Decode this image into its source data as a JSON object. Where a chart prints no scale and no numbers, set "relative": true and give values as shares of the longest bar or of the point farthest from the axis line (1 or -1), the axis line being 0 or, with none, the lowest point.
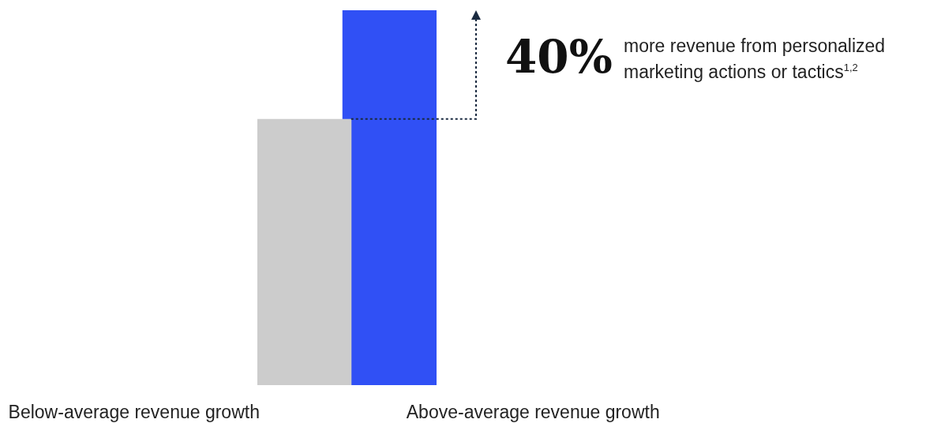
{
  "chart_data": {
    "type": "bar",
    "relative": true,
    "categories": [
      "Below-average revenue growth",
      "Above-average revenue growth"
    ],
    "values": [
      0.71,
      1
    ],
    "colors": [
      "#cccccc",
      "#3050f5"
    ],
    "annotations": [
      "40%",
      "more revenue from personalized marketing actions or tactics$^{1,2}$"
    ]
  }
}
